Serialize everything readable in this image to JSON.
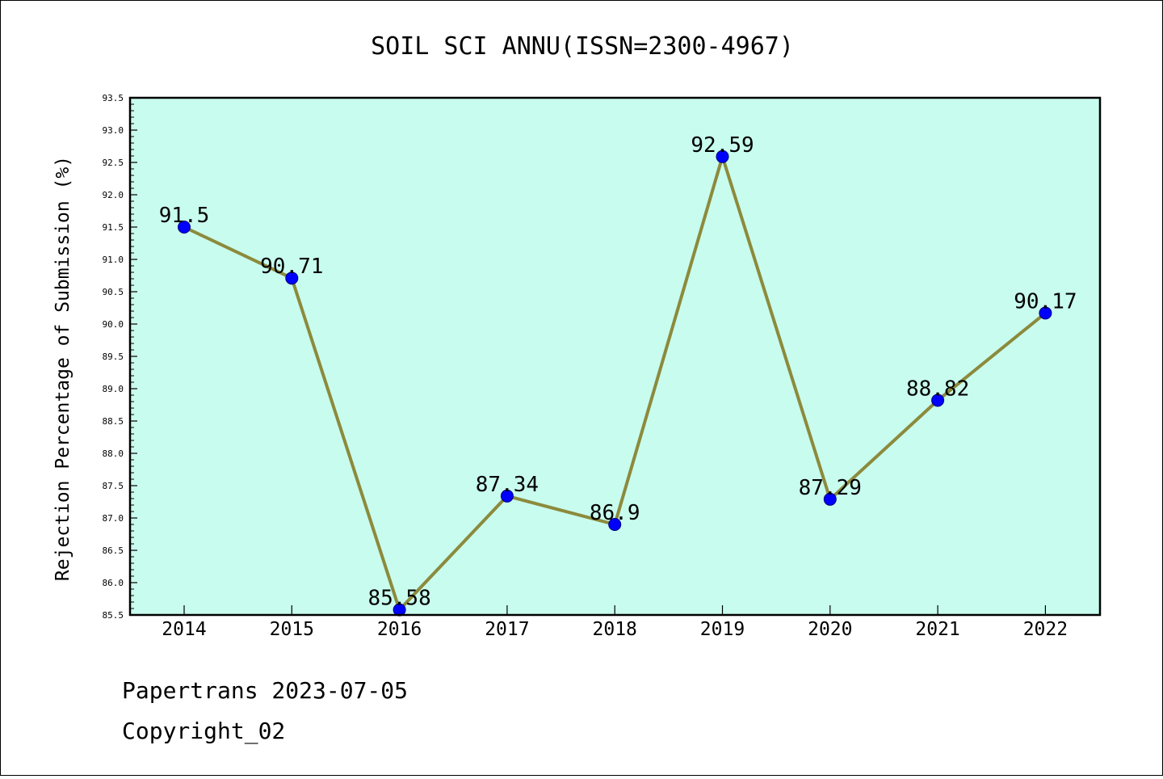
{
  "chart_data": {
    "type": "line",
    "title": "SOIL SCI ANNU(ISSN=2300-4967)",
    "xlabel": "",
    "ylabel": "Rejection Percentage of Submission (%)",
    "categories": [
      "2014",
      "2015",
      "2016",
      "2017",
      "2018",
      "2019",
      "2020",
      "2021",
      "2022"
    ],
    "values": [
      91.5,
      90.71,
      85.58,
      87.34,
      86.9,
      92.59,
      87.29,
      88.82,
      90.17
    ],
    "data_labels": [
      "91.5",
      "90.71",
      "85.58",
      "87.34",
      "86.9",
      "92.59",
      "87.29",
      "88.82",
      "90.17"
    ],
    "ylim": [
      85.5,
      93.5
    ],
    "yticks": [
      "85.5",
      "86.0",
      "86.5",
      "87.0",
      "87.5",
      "88.0",
      "88.5",
      "89.0",
      "89.5",
      "90.0",
      "90.5",
      "91.0",
      "91.5",
      "92.0",
      "92.5",
      "93.0",
      "93.5"
    ],
    "grid": false,
    "legend": "none",
    "colors": {
      "plot_background": "#c8fcee",
      "line": "#8c8a3c",
      "marker": "#0000ff"
    }
  },
  "footer": {
    "line1": "Papertrans 2023-07-05",
    "line2": "Copyright_02"
  }
}
